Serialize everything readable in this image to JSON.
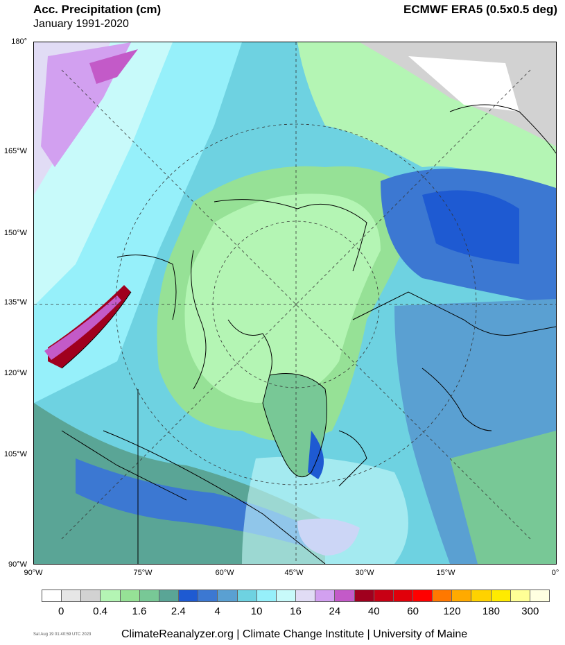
{
  "header": {
    "title": "Acc. Precipitation (cm)",
    "subtitle": "January 1991-2020",
    "source": "ECMWF ERA5 (0.5x0.5 deg)"
  },
  "lat_labels": [
    "180°",
    "165°W",
    "150°W",
    "135°W",
    "120°W",
    "105°W",
    "90°W"
  ],
  "lon_labels": [
    "90°W",
    "75°W",
    "60°W",
    "45°W",
    "30°W",
    "15°W",
    "0°"
  ],
  "legend": {
    "colors": [
      "#ffffff",
      "#e6e6e6",
      "#d2d2d2",
      "#b4f5b4",
      "#96e196",
      "#78c896",
      "#5aa596",
      "#1e5ad2",
      "#3c78d2",
      "#5aa0d2",
      "#6ed2e1",
      "#96f0fa",
      "#c8fafa",
      "#e1dcf5",
      "#d2a0f0",
      "#c35ac8",
      "#a0001e",
      "#c80014",
      "#e1000a",
      "#ff0000",
      "#ff7800",
      "#ffaa00",
      "#ffd200",
      "#ffeb00",
      "#ffff96",
      "#ffffe1"
    ],
    "labels": [
      "0",
      "0.4",
      "1.6",
      "2.4",
      "4",
      "10",
      "16",
      "24",
      "40",
      "60",
      "120",
      "180",
      "300"
    ]
  },
  "footer": {
    "timestamp": "Sat Aug 19 01:40:59 UTC 2023",
    "credits": "ClimateReanalyzer.org | Climate Change Institute | University of Maine"
  }
}
